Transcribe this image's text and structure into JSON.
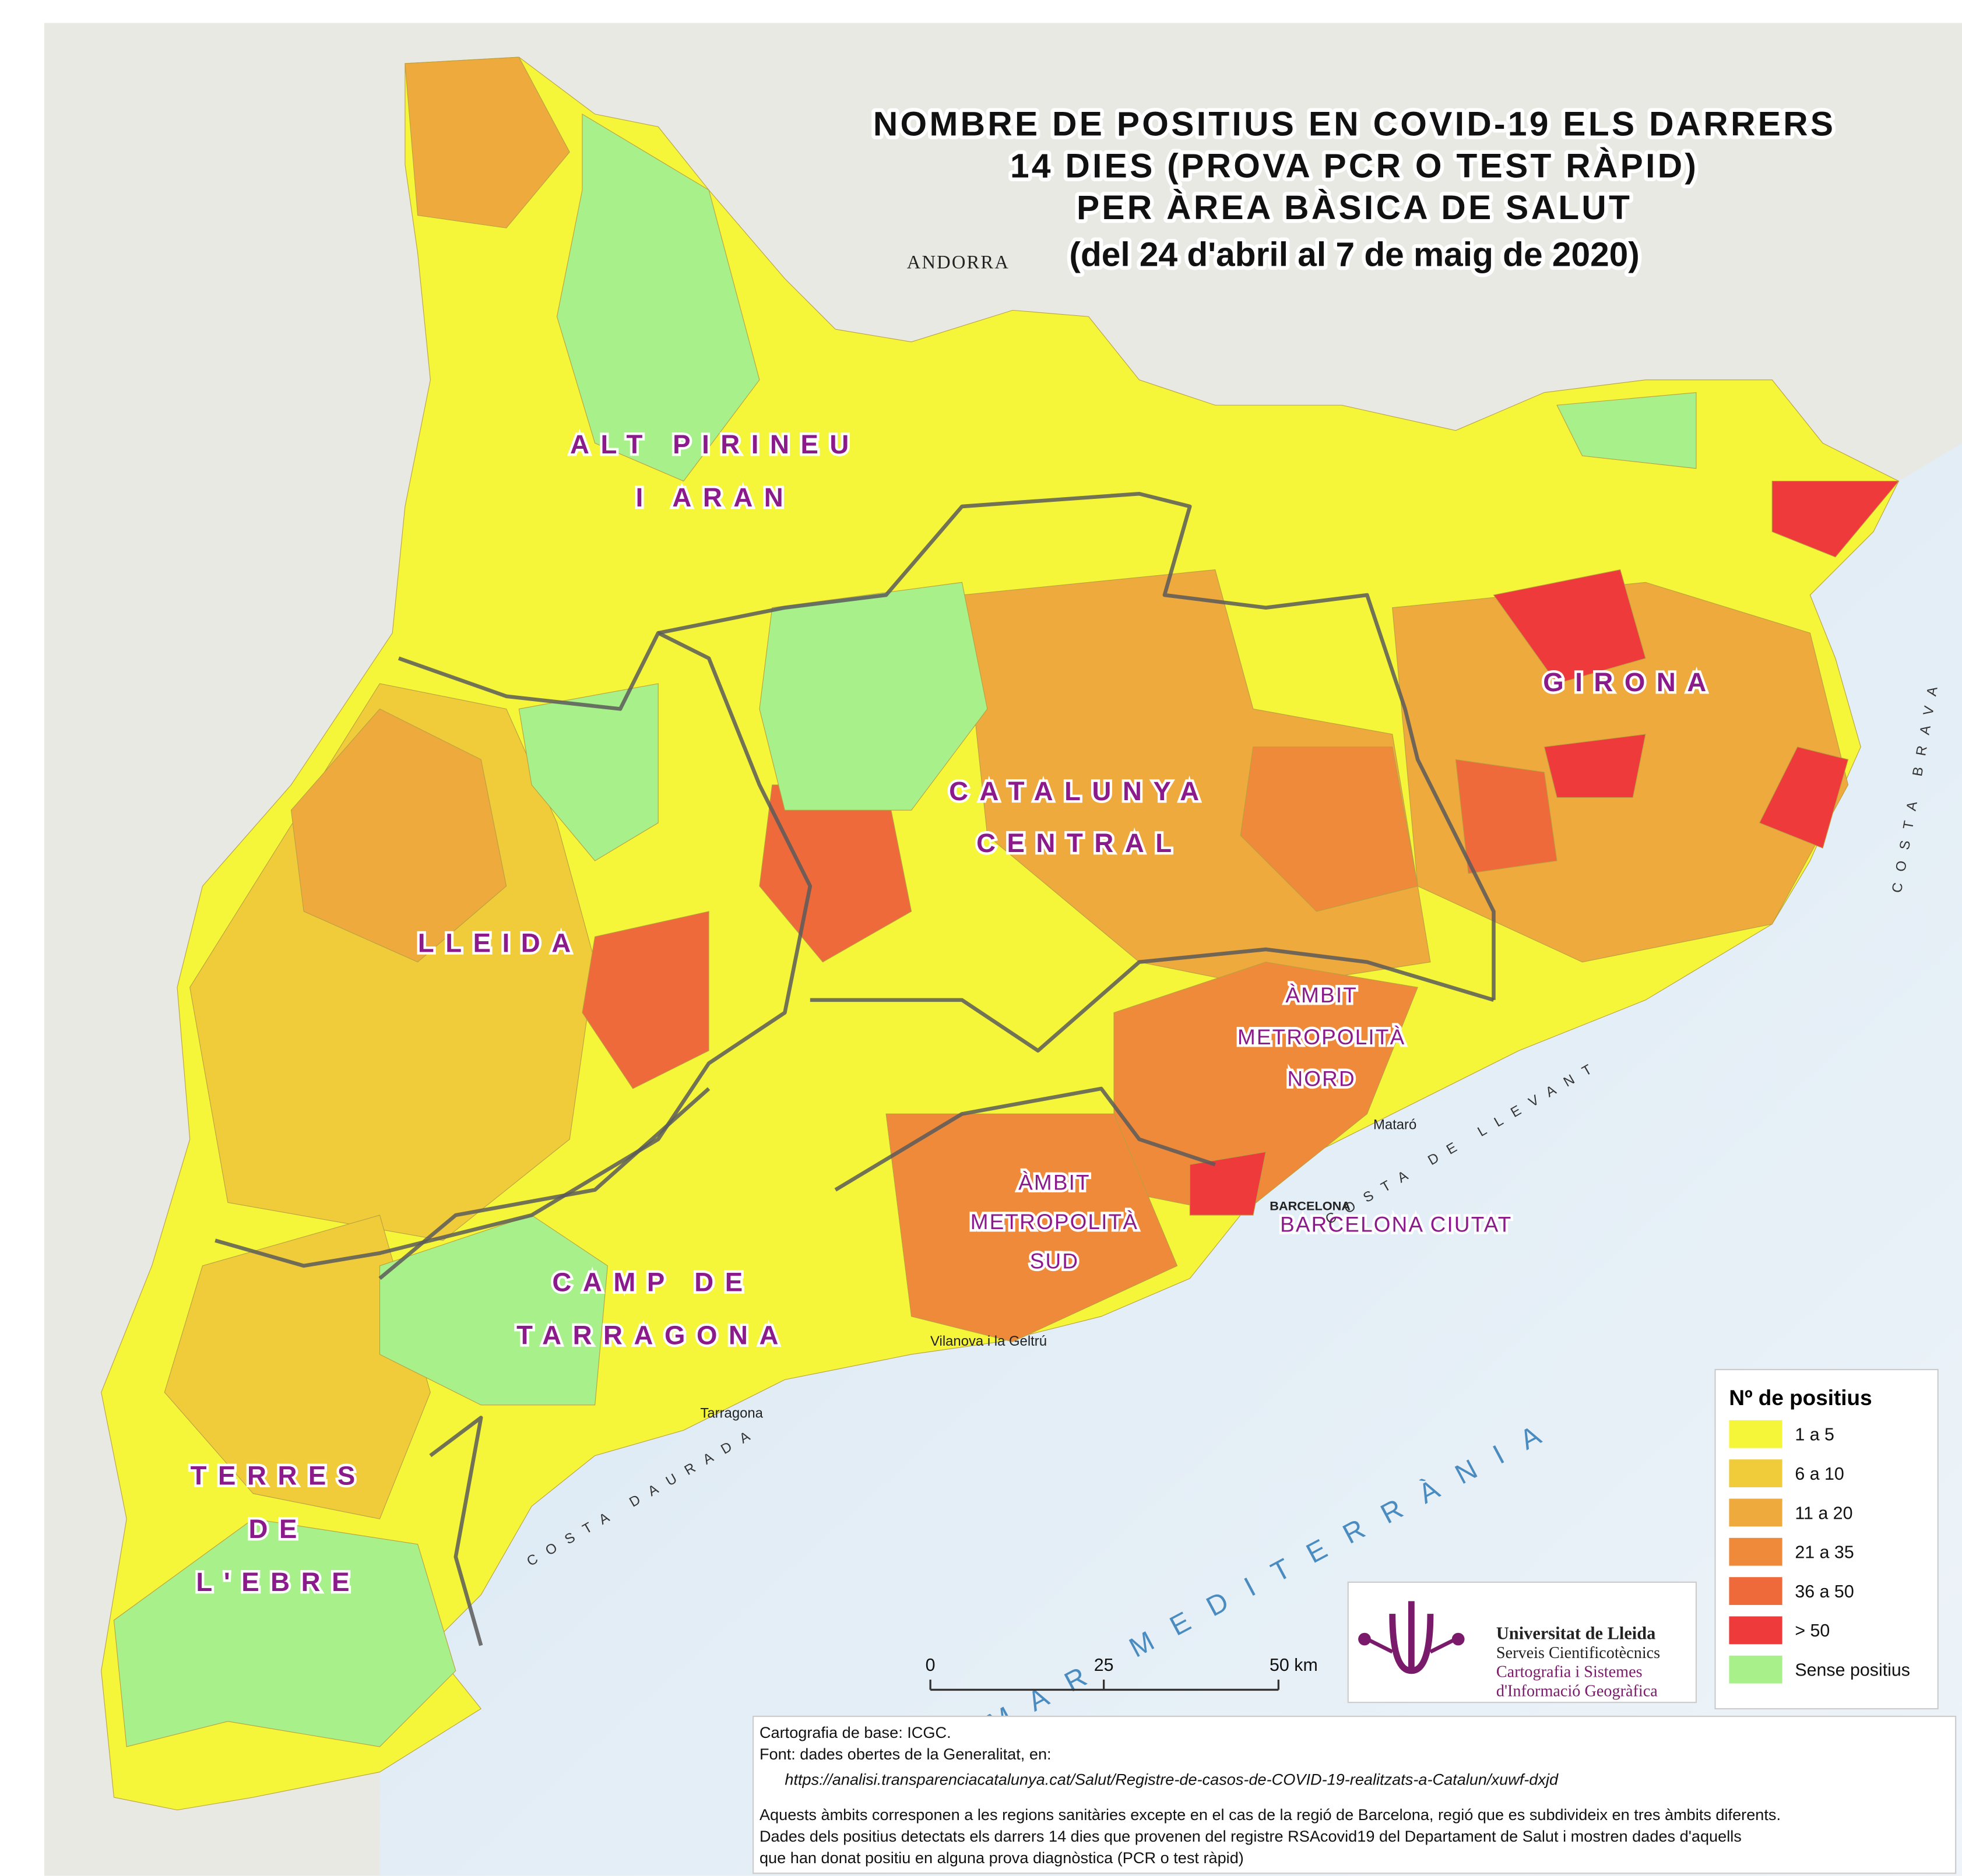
{
  "title": {
    "lines": [
      "NOMBRE DE POSITIUS EN COVID-19 ELS DARRERS",
      "14 DIES (PROVA PCR O TEST RÀPID)",
      "PER ÀREA BÀSICA DE SALUT",
      "(del 24 d'abril al 7 de maig de 2020)"
    ]
  },
  "regions": [
    {
      "lines": [
        "ALT PIRINEU",
        "I ARAN"
      ]
    },
    {
      "lines": [
        "CATALUNYA",
        "CENTRAL"
      ]
    },
    {
      "lines": [
        "GIRONA"
      ]
    },
    {
      "lines": [
        "LLEIDA"
      ]
    },
    {
      "lines": [
        "ÀMBIT",
        "METROPOLITÀ",
        "NORD"
      ]
    },
    {
      "lines": [
        "ÀMBIT",
        "METROPOLITÀ",
        "SUD"
      ]
    },
    {
      "lines": [
        "BARCELONA CIUTAT"
      ]
    },
    {
      "lines": [
        "CAMP DE",
        "TARRAGONA"
      ]
    },
    {
      "lines": [
        "TERRES",
        "DE",
        "L'EBRE"
      ]
    }
  ],
  "places": [
    "ANDORRA",
    "BARCELONA",
    "Mataró",
    "Tarragona",
    "Vilanova i la Geltrú",
    "COSTA BRAVA",
    "COSTA DAURADA",
    "COSTA DE LLEVANT",
    "MAR MEDITERRÀNIA"
  ],
  "legend": {
    "title": "Nº de positius",
    "items": [
      {
        "label": "1 a 5",
        "color": "#f5f53a"
      },
      {
        "label": "6 a 10",
        "color": "#f0cc3a"
      },
      {
        "label": "11 a 20",
        "color": "#eeaa3c"
      },
      {
        "label": "21 a 35",
        "color": "#ee8a3a"
      },
      {
        "label": "36 a 50",
        "color": "#ee6a3a"
      },
      {
        "label": "> 50",
        "color": "#ee3a3a"
      },
      {
        "label": "Sense positius",
        "color": "#a8f08a"
      }
    ]
  },
  "scale": [
    "0",
    "25",
    "50 km"
  ],
  "logo": [
    "Universitat de Lleida",
    "Serveis Cientificotècnics",
    "Cartografia i Sistemes",
    "d'Informació Geogràfica"
  ],
  "notes": [
    "Cartografia de base: ICGC.",
    "Font: dades obertes de la Generalitat, en:",
    "https://analisi.transparenciacatalunya.cat/Salut/Registre-de-casos-de-COVID-19-realitzats-a-Catalun/xuwf-dxjd",
    "Aquests àmbits corresponen a les regions sanitàries excepte en el cas de la regió de Barcelona, regió que es subdivideix en tres àmbits diferents.",
    "Dades dels positius detectats els darrers 14 dies que provenen del registre RSAcovid19 del Departament de Salut i mostren dades d'aquells",
    "que han donat positiu en alguna prova diagnòstica (PCR o test ràpid)"
  ]
}
